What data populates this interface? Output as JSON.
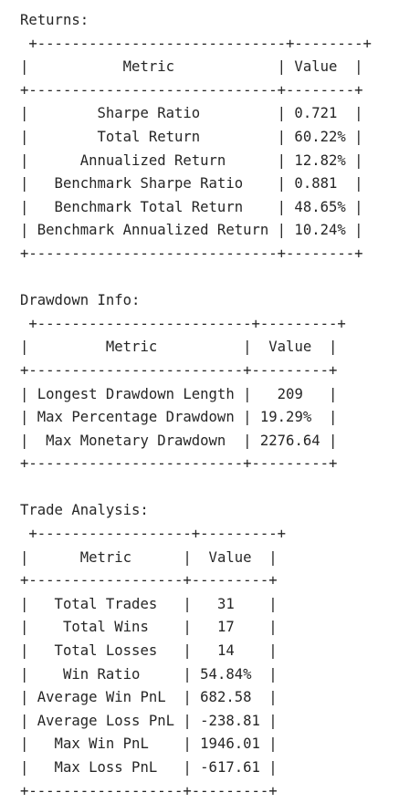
{
  "sections": [
    {
      "title": "Returns:",
      "header": {
        "metric": "Metric",
        "value": "Value"
      },
      "rows": [
        {
          "metric": "Sharpe Ratio",
          "value": "0.721",
          "align": "left"
        },
        {
          "metric": "Total Return",
          "value": "60.22%",
          "align": "left"
        },
        {
          "metric": "Annualized Return",
          "value": "12.82%",
          "align": "left"
        },
        {
          "metric": "Benchmark Sharpe Ratio",
          "value": "0.881",
          "align": "left"
        },
        {
          "metric": "Benchmark Total Return",
          "value": "48.65%",
          "align": "left"
        },
        {
          "metric": "Benchmark Annualized Return",
          "value": "10.24%",
          "align": "left"
        }
      ]
    },
    {
      "title": "Drawdown Info:",
      "header": {
        "metric": "Metric",
        "value": "Value"
      },
      "rows": [
        {
          "metric": "Longest Drawdown Length",
          "value": "209",
          "align": "center"
        },
        {
          "metric": "Max Percentage Drawdown",
          "value": "19.29%",
          "align": "center"
        },
        {
          "metric": "Max Monetary Drawdown",
          "value": "2276.64",
          "align": "center"
        }
      ]
    },
    {
      "title": "Trade Analysis:",
      "header": {
        "metric": "Metric",
        "value": "Value"
      },
      "rows": [
        {
          "metric": "Total Trades",
          "value": "31",
          "align": "center"
        },
        {
          "metric": "Total Wins",
          "value": "17",
          "align": "center"
        },
        {
          "metric": "Total Losses",
          "value": "14",
          "align": "center"
        },
        {
          "metric": "Win Ratio",
          "value": "54.84%",
          "align": "center"
        },
        {
          "metric": "Average Win PnL",
          "value": "682.58",
          "align": "center"
        },
        {
          "metric": "Average Loss PnL",
          "value": "-238.81",
          "align": "center"
        },
        {
          "metric": "Max Win PnL",
          "value": "1946.01",
          "align": "center"
        },
        {
          "metric": "Max Loss PnL",
          "value": "-617.61",
          "align": "center"
        }
      ]
    }
  ]
}
